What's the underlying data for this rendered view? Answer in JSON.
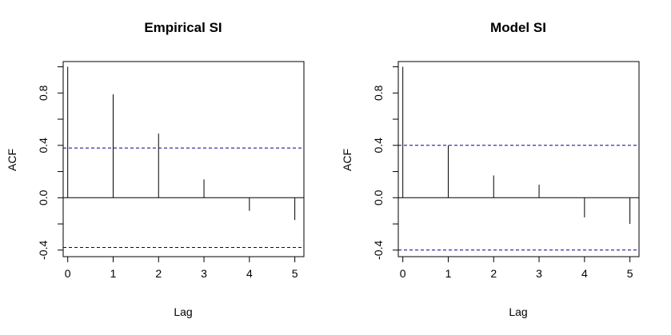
{
  "chart_data": [
    {
      "type": "bar",
      "title": "Empirical SI",
      "xlabel": "Lag",
      "ylabel": "ACF",
      "x": [
        0,
        1,
        2,
        3,
        4,
        5
      ],
      "values": [
        1.0,
        0.79,
        0.49,
        0.14,
        -0.1,
        -0.17
      ],
      "xlim": [
        -0.1,
        5.2
      ],
      "ylim": [
        -0.45,
        1.04
      ],
      "x_ticks": [
        "0",
        "1",
        "2",
        "3",
        "4",
        "5"
      ],
      "y_ticks": [
        "-0.4",
        "0.0",
        "0.4",
        "0.8"
      ],
      "confidence_bound": 0.38,
      "confidence_color": "#00008b",
      "grid": false
    },
    {
      "type": "bar",
      "title": "Model SI",
      "xlabel": "Lag",
      "ylabel": "ACF",
      "x": [
        0,
        1,
        2,
        3,
        4,
        5
      ],
      "values": [
        1.0,
        0.4,
        0.17,
        0.1,
        -0.15,
        -0.2
      ],
      "xlim": [
        -0.1,
        5.2
      ],
      "ylim": [
        -0.45,
        1.04
      ],
      "x_ticks": [
        "0",
        "1",
        "2",
        "3",
        "4",
        "5"
      ],
      "y_ticks": [
        "-0.4",
        "0.0",
        "0.4",
        "0.8"
      ],
      "confidence_bound": 0.4,
      "confidence_color": "#00008b",
      "grid": false
    }
  ]
}
